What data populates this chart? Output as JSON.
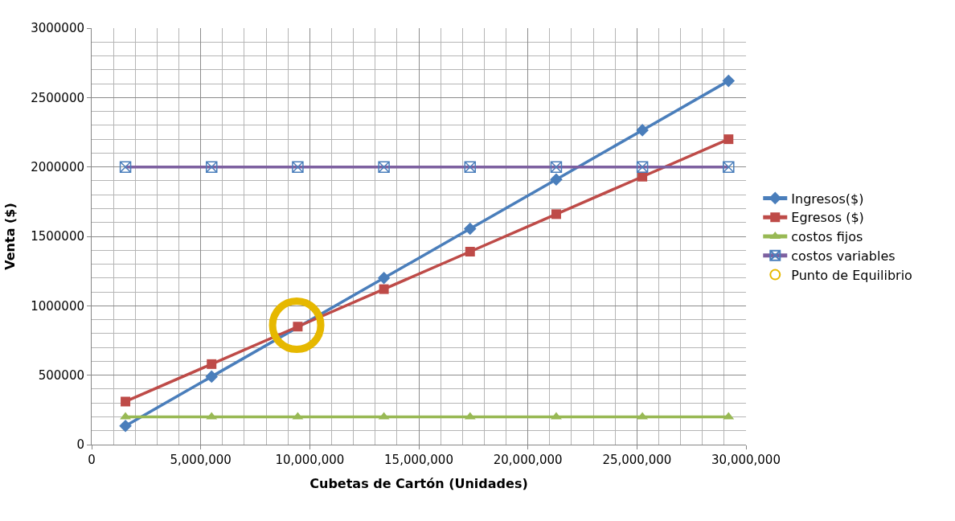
{
  "chart_data": {
    "type": "line",
    "xlabel": "Cubetas de Cartón (Unidades)",
    "ylabel": "Venta ($)",
    "x": [
      1550000,
      5500000,
      9450000,
      13400000,
      17350000,
      21300000,
      25250000,
      29200000
    ],
    "series": [
      {
        "name": "Ingresos($)",
        "color": "#4a7ebb",
        "marker": "diamond",
        "values": [
          135000,
          490000,
          null,
          1200000,
          1555000,
          1910000,
          2265000,
          2620000
        ]
      },
      {
        "name": "Egresos ($)",
        "color": "#be4b48",
        "marker": "square",
        "values": [
          310000,
          580000,
          850000,
          1120000,
          1390000,
          1660000,
          1930000,
          2200000
        ]
      },
      {
        "name": "costos fijos",
        "color": "#98b954",
        "marker": "triangle",
        "values": [
          200000,
          200000,
          200000,
          200000,
          200000,
          200000,
          200000,
          200000
        ]
      },
      {
        "name": "costos variables",
        "color": "#7d60a0",
        "marker": "cross",
        "values": [
          2000000,
          2000000,
          2000000,
          2000000,
          2000000,
          2000000,
          2000000,
          2000000
        ]
      },
      {
        "name": "Punto de Equilibrio",
        "type": "scatter",
        "color": "#e6b800",
        "marker": "circle",
        "x": [
          9400000
        ],
        "values": [
          860000
        ]
      }
    ],
    "xlim": [
      0,
      30000000
    ],
    "xticks": [
      0,
      {
        "value": 5000000,
        "label": "5,000,000"
      },
      {
        "value": 10000000,
        "label": "10,000,000"
      },
      {
        "value": 15000000,
        "label": "15,000,000"
      },
      {
        "value": 20000000,
        "label": "20,000,000"
      },
      {
        "value": 25000000,
        "label": "25,000,000"
      },
      {
        "value": 30000000,
        "label": "30,000,000"
      }
    ],
    "ylim": [
      0,
      3000000
    ],
    "yticks": [
      0,
      500000,
      1000000,
      1500000,
      2000000,
      2500000,
      3000000
    ],
    "grid": true,
    "legend": "right"
  }
}
